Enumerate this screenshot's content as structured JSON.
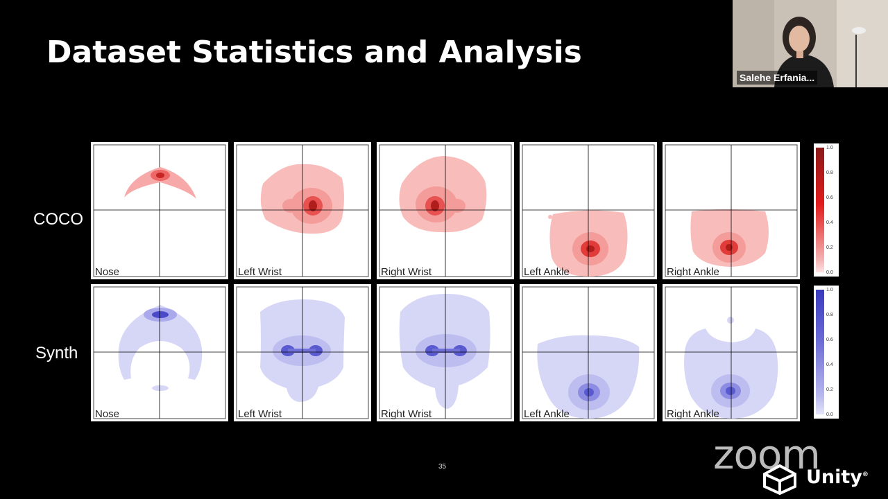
{
  "slide": {
    "title": "Dataset Statistics and Analysis",
    "page_number": "35",
    "row_labels": [
      "COCO",
      "Synth"
    ],
    "panel_labels": [
      "Nose",
      "Left Wrist",
      "Right Wrist",
      "Left Ankle",
      "Right Ankle"
    ],
    "colorbar_ticks": [
      "1.0",
      "0.8",
      "0.6",
      "0.4",
      "0.2",
      "0.0"
    ],
    "colors": {
      "coco": "#e8302c",
      "synth": "#4646d8"
    }
  },
  "participant": {
    "name": "Salehe Erfania..."
  },
  "branding": {
    "zoom": "zoom",
    "unity": "Unity",
    "registered": "®"
  }
}
